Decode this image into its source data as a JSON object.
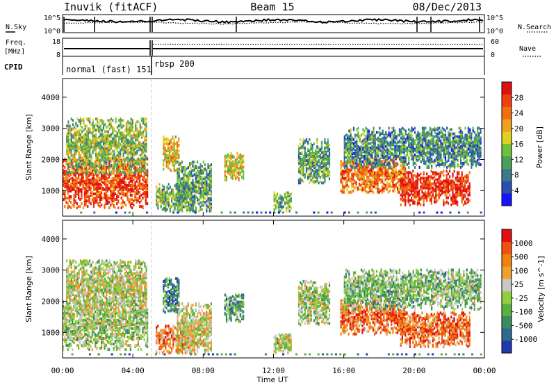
{
  "header": {
    "title": "Inuvik (fitACF)",
    "beam": "Beam 15",
    "date": "08/Dec/2013"
  },
  "noise_panel": {
    "left_label": "N.Sky",
    "left_ticks": [
      "10^5",
      "10^0"
    ],
    "right_ticks": [
      "10^5",
      "10^0"
    ],
    "right_label": "N.Search"
  },
  "freq_panel": {
    "left_label_line1": "Freq.",
    "left_label_line2": "[MHz]",
    "left_ticks": [
      "18",
      "8"
    ],
    "right_ticks": [
      "60",
      "0"
    ],
    "right_label": "Nave"
  },
  "cpid_panel": {
    "label": "CPID",
    "modes": [
      "normal (fast) 151",
      "rbsp 200"
    ]
  },
  "time_axis": {
    "label": "Time UT",
    "ticks": [
      "00:00",
      "04:00",
      "08:00",
      "12:00",
      "16:00",
      "20:00",
      "00:00"
    ]
  },
  "chart_data": [
    {
      "type": "heatmap",
      "name": "power",
      "ylabel": "Slant Range [km]",
      "y_ticks": [
        1000,
        2000,
        3000,
        4000
      ],
      "ylim": [
        180,
        4600
      ],
      "xlim_hours": [
        0,
        24
      ],
      "colorbar": {
        "label": "Power [dB]",
        "ticks": [
          4,
          8,
          12,
          16,
          20,
          24,
          28
        ],
        "colors": [
          "#1414ff",
          "#2a4fb0",
          "#3a7a8a",
          "#4aa05a",
          "#6cc03a",
          "#e0d020",
          "#f0a020",
          "#f07010",
          "#f04010",
          "#e01010"
        ]
      },
      "regions": [
        {
          "t": [
            0.0,
            4.8
          ],
          "r": [
            400,
            2000
          ],
          "level": 0.85
        },
        {
          "t": [
            0.2,
            4.8
          ],
          "r": [
            1500,
            3300
          ],
          "level": 0.45
        },
        {
          "t": [
            5.3,
            7.5
          ],
          "r": [
            300,
            1200
          ],
          "level": 0.4
        },
        {
          "t": [
            5.7,
            6.6
          ],
          "r": [
            1600,
            2700
          ],
          "level": 0.6
        },
        {
          "t": [
            6.5,
            8.5
          ],
          "r": [
            300,
            1900
          ],
          "level": 0.35
        },
        {
          "t": [
            9.2,
            10.3
          ],
          "r": [
            1300,
            2200
          ],
          "level": 0.55
        },
        {
          "t": [
            12.0,
            13.0
          ],
          "r": [
            300,
            900
          ],
          "level": 0.4
        },
        {
          "t": [
            13.4,
            15.2
          ],
          "r": [
            1200,
            2600
          ],
          "level": 0.35
        },
        {
          "t": [
            15.8,
            19.5
          ],
          "r": [
            900,
            2000
          ],
          "level": 0.75
        },
        {
          "t": [
            19.2,
            23.2
          ],
          "r": [
            500,
            1600
          ],
          "level": 0.9
        },
        {
          "t": [
            16.0,
            23.8
          ],
          "r": [
            1700,
            3000
          ],
          "level": 0.3
        }
      ]
    },
    {
      "type": "heatmap",
      "name": "velocity",
      "ylabel": "Slant Range [km]",
      "y_ticks": [
        1000,
        2000,
        3000,
        4000
      ],
      "ylim": [
        180,
        4600
      ],
      "xlim_hours": [
        0,
        24
      ],
      "colorbar": {
        "label": "Velocity [m s^-1]",
        "ticks": [
          1000,
          500,
          100,
          25,
          -25,
          -100,
          -500,
          -1000
        ],
        "colors": [
          "#2038b0",
          "#2e6a90",
          "#3a8c60",
          "#5ab040",
          "#90d040",
          "#c8c8c8",
          "#f0a030",
          "#f08010",
          "#f05010",
          "#e01010"
        ]
      },
      "regions": [
        {
          "t": [
            0.0,
            4.8
          ],
          "r": [
            400,
            2000
          ],
          "level": 0.45
        },
        {
          "t": [
            0.2,
            4.8
          ],
          "r": [
            1500,
            3300
          ],
          "level": 0.5
        },
        {
          "t": [
            5.3,
            7.5
          ],
          "r": [
            300,
            1200
          ],
          "level": 0.75
        },
        {
          "t": [
            5.7,
            6.6
          ],
          "r": [
            1600,
            2700
          ],
          "level": 0.2
        },
        {
          "t": [
            6.5,
            8.5
          ],
          "r": [
            300,
            1900
          ],
          "level": 0.55
        },
        {
          "t": [
            9.2,
            10.3
          ],
          "r": [
            1300,
            2200
          ],
          "level": 0.3
        },
        {
          "t": [
            12.0,
            13.0
          ],
          "r": [
            300,
            900
          ],
          "level": 0.5
        },
        {
          "t": [
            13.4,
            15.2
          ],
          "r": [
            1200,
            2600
          ],
          "level": 0.45
        },
        {
          "t": [
            15.8,
            19.5
          ],
          "r": [
            900,
            2000
          ],
          "level": 0.8
        },
        {
          "t": [
            19.2,
            23.2
          ],
          "r": [
            500,
            1600
          ],
          "level": 0.8
        },
        {
          "t": [
            16.0,
            23.8
          ],
          "r": [
            1700,
            3000
          ],
          "level": 0.4
        }
      ]
    }
  ]
}
